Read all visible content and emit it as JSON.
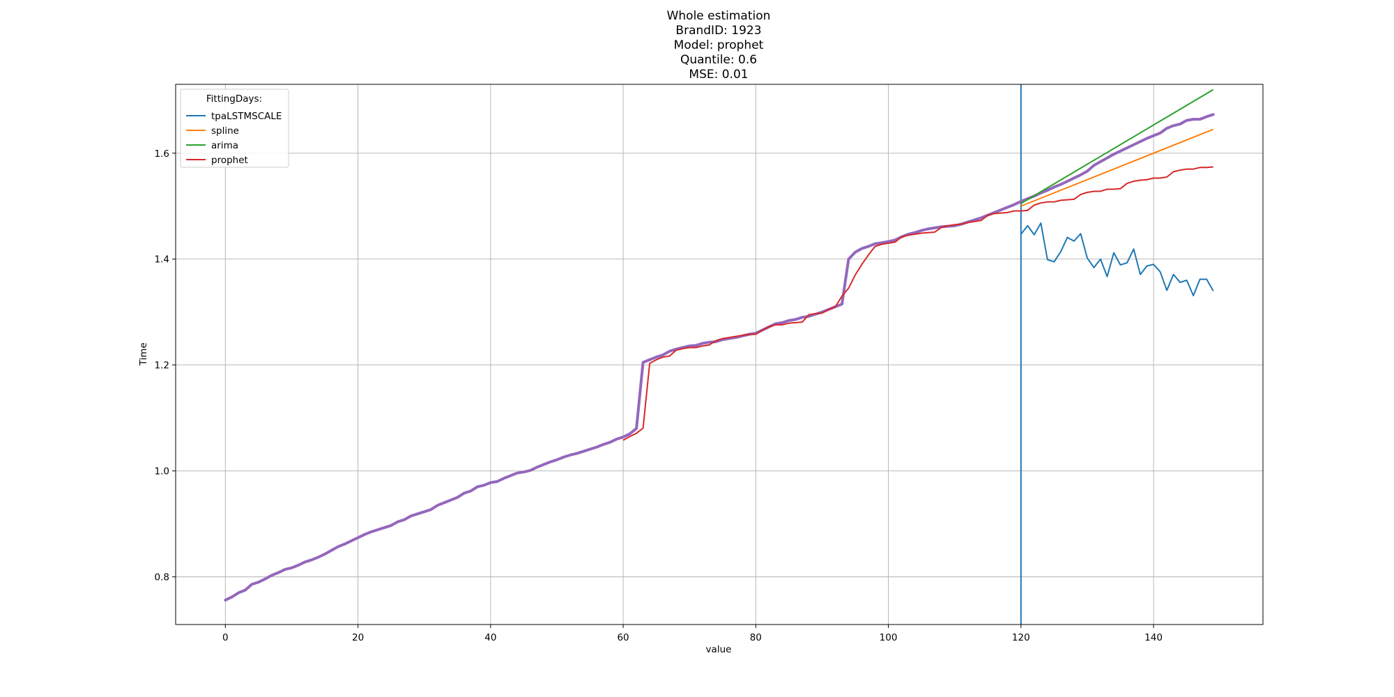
{
  "chart_data": {
    "type": "line",
    "title_lines": [
      "Whole estimation",
      "BrandID: 1923",
      "Model: prophet",
      "Quantile: 0.6",
      "MSE: 0.01"
    ],
    "xlabel": "value",
    "ylabel": "Time",
    "xlim": [
      -7.5,
      156.5
    ],
    "ylim": [
      0.71,
      1.73
    ],
    "xticks": [
      0,
      20,
      40,
      60,
      80,
      100,
      120,
      140
    ],
    "yticks": [
      0.8,
      1.0,
      1.2,
      1.4,
      1.6
    ],
    "ytick_labels": [
      "0.8",
      "1.0",
      "1.2",
      "1.4",
      "1.6"
    ],
    "grid": true,
    "legend": {
      "title": "FittingDays:",
      "placement": "upper-left"
    },
    "vline_x": 120,
    "vline_color": "#1f77b4",
    "actual": {
      "color": "#9467bd",
      "points": [
        [
          0,
          0.756
        ],
        [
          1,
          0.762
        ],
        [
          2,
          0.77
        ],
        [
          3,
          0.775
        ],
        [
          4,
          0.786
        ],
        [
          5,
          0.79
        ],
        [
          6,
          0.796
        ],
        [
          7,
          0.803
        ],
        [
          8,
          0.808
        ],
        [
          9,
          0.814
        ],
        [
          10,
          0.817
        ],
        [
          11,
          0.822
        ],
        [
          12,
          0.828
        ],
        [
          13,
          0.832
        ],
        [
          14,
          0.837
        ],
        [
          15,
          0.843
        ],
        [
          16,
          0.85
        ],
        [
          17,
          0.857
        ],
        [
          18,
          0.862
        ],
        [
          19,
          0.868
        ],
        [
          20,
          0.874
        ],
        [
          21,
          0.88
        ],
        [
          22,
          0.885
        ],
        [
          23,
          0.889
        ],
        [
          24,
          0.893
        ],
        [
          25,
          0.897
        ],
        [
          26,
          0.904
        ],
        [
          27,
          0.908
        ],
        [
          28,
          0.915
        ],
        [
          29,
          0.919
        ],
        [
          30,
          0.923
        ],
        [
          31,
          0.927
        ],
        [
          32,
          0.935
        ],
        [
          33,
          0.94
        ],
        [
          34,
          0.945
        ],
        [
          35,
          0.95
        ],
        [
          36,
          0.958
        ],
        [
          37,
          0.962
        ],
        [
          38,
          0.97
        ],
        [
          39,
          0.973
        ],
        [
          40,
          0.978
        ],
        [
          41,
          0.98
        ],
        [
          42,
          0.986
        ],
        [
          43,
          0.991
        ],
        [
          44,
          0.996
        ],
        [
          45,
          0.998
        ],
        [
          46,
          1.001
        ],
        [
          47,
          1.007
        ],
        [
          48,
          1.012
        ],
        [
          49,
          1.017
        ],
        [
          50,
          1.021
        ],
        [
          51,
          1.026
        ],
        [
          52,
          1.03
        ],
        [
          53,
          1.033
        ],
        [
          54,
          1.037
        ],
        [
          55,
          1.041
        ],
        [
          56,
          1.045
        ],
        [
          57,
          1.05
        ],
        [
          58,
          1.054
        ],
        [
          59,
          1.06
        ],
        [
          60,
          1.064
        ],
        [
          61,
          1.07
        ],
        [
          62,
          1.08
        ],
        [
          63,
          1.205
        ],
        [
          64,
          1.21
        ],
        [
          65,
          1.215
        ],
        [
          66,
          1.219
        ],
        [
          67,
          1.226
        ],
        [
          68,
          1.23
        ],
        [
          69,
          1.233
        ],
        [
          70,
          1.236
        ],
        [
          71,
          1.237
        ],
        [
          72,
          1.241
        ],
        [
          73,
          1.243
        ],
        [
          74,
          1.244
        ],
        [
          75,
          1.248
        ],
        [
          76,
          1.25
        ],
        [
          77,
          1.252
        ],
        [
          78,
          1.255
        ],
        [
          79,
          1.258
        ],
        [
          80,
          1.26
        ],
        [
          81,
          1.266
        ],
        [
          82,
          1.272
        ],
        [
          83,
          1.278
        ],
        [
          84,
          1.28
        ],
        [
          85,
          1.284
        ],
        [
          86,
          1.286
        ],
        [
          87,
          1.29
        ],
        [
          88,
          1.292
        ],
        [
          89,
          1.296
        ],
        [
          90,
          1.3
        ],
        [
          91,
          1.305
        ],
        [
          92,
          1.31
        ],
        [
          93,
          1.315
        ],
        [
          94,
          1.4
        ],
        [
          95,
          1.413
        ],
        [
          96,
          1.42
        ],
        [
          97,
          1.424
        ],
        [
          98,
          1.429
        ],
        [
          99,
          1.431
        ],
        [
          100,
          1.433
        ],
        [
          101,
          1.436
        ],
        [
          102,
          1.442
        ],
        [
          103,
          1.447
        ],
        [
          104,
          1.45
        ],
        [
          105,
          1.454
        ],
        [
          106,
          1.457
        ],
        [
          107,
          1.459
        ],
        [
          108,
          1.461
        ],
        [
          109,
          1.462
        ],
        [
          110,
          1.463
        ],
        [
          111,
          1.466
        ],
        [
          112,
          1.47
        ],
        [
          113,
          1.474
        ],
        [
          114,
          1.478
        ],
        [
          115,
          1.483
        ],
        [
          116,
          1.488
        ],
        [
          117,
          1.493
        ],
        [
          118,
          1.498
        ],
        [
          119,
          1.503
        ],
        [
          120,
          1.509
        ],
        [
          121,
          1.514
        ],
        [
          122,
          1.519
        ],
        [
          123,
          1.525
        ],
        [
          124,
          1.53
        ],
        [
          125,
          1.536
        ],
        [
          126,
          1.541
        ],
        [
          127,
          1.547
        ],
        [
          128,
          1.553
        ],
        [
          129,
          1.559
        ],
        [
          130,
          1.566
        ],
        [
          131,
          1.577
        ],
        [
          132,
          1.584
        ],
        [
          133,
          1.591
        ],
        [
          134,
          1.598
        ],
        [
          135,
          1.604
        ],
        [
          136,
          1.61
        ],
        [
          137,
          1.616
        ],
        [
          138,
          1.622
        ],
        [
          139,
          1.628
        ],
        [
          140,
          1.633
        ],
        [
          141,
          1.638
        ],
        [
          142,
          1.647
        ],
        [
          143,
          1.652
        ],
        [
          144,
          1.655
        ],
        [
          145,
          1.662
        ],
        [
          146,
          1.664
        ],
        [
          147,
          1.664
        ],
        [
          148,
          1.669
        ],
        [
          149,
          1.673
        ]
      ]
    },
    "series": [
      {
        "name": "tpaLSTMSCALE",
        "color": "#1f77b4",
        "points": [
          [
            120,
            1.447
          ],
          [
            121,
            1.463
          ],
          [
            122,
            1.446
          ],
          [
            123,
            1.468
          ],
          [
            124,
            1.399
          ],
          [
            125,
            1.395
          ],
          [
            126,
            1.414
          ],
          [
            127,
            1.441
          ],
          [
            128,
            1.434
          ],
          [
            129,
            1.448
          ],
          [
            130,
            1.402
          ],
          [
            131,
            1.384
          ],
          [
            132,
            1.4
          ],
          [
            133,
            1.367
          ],
          [
            134,
            1.412
          ],
          [
            135,
            1.389
          ],
          [
            136,
            1.393
          ],
          [
            137,
            1.419
          ],
          [
            138,
            1.371
          ],
          [
            139,
            1.387
          ],
          [
            140,
            1.39
          ],
          [
            141,
            1.376
          ],
          [
            142,
            1.341
          ],
          [
            143,
            1.371
          ],
          [
            144,
            1.356
          ],
          [
            145,
            1.36
          ],
          [
            146,
            1.331
          ],
          [
            147,
            1.362
          ],
          [
            148,
            1.362
          ],
          [
            149,
            1.34
          ]
        ]
      },
      {
        "name": "spline",
        "color": "#ff7f0e",
        "points": [
          [
            120,
            1.5
          ],
          [
            149,
            1.645
          ]
        ]
      },
      {
        "name": "arima",
        "color": "#2ca02c",
        "points": [
          [
            120,
            1.505
          ],
          [
            149,
            1.72
          ]
        ]
      },
      {
        "name": "prophet",
        "color": "#d62728",
        "points": [
          [
            60,
            1.058
          ],
          [
            61,
            1.065
          ],
          [
            62,
            1.071
          ],
          [
            63,
            1.081
          ],
          [
            64,
            1.203
          ],
          [
            65,
            1.21
          ],
          [
            66,
            1.215
          ],
          [
            67,
            1.217
          ],
          [
            68,
            1.228
          ],
          [
            69,
            1.231
          ],
          [
            70,
            1.233
          ],
          [
            71,
            1.233
          ],
          [
            72,
            1.236
          ],
          [
            73,
            1.238
          ],
          [
            74,
            1.246
          ],
          [
            75,
            1.25
          ],
          [
            76,
            1.252
          ],
          [
            77,
            1.254
          ],
          [
            78,
            1.256
          ],
          [
            79,
            1.258
          ],
          [
            80,
            1.258
          ],
          [
            81,
            1.266
          ],
          [
            82,
            1.272
          ],
          [
            83,
            1.276
          ],
          [
            84,
            1.276
          ],
          [
            85,
            1.279
          ],
          [
            86,
            1.28
          ],
          [
            87,
            1.281
          ],
          [
            88,
            1.295
          ],
          [
            89,
            1.297
          ],
          [
            90,
            1.298
          ],
          [
            91,
            1.305
          ],
          [
            92,
            1.31
          ],
          [
            93,
            1.33
          ],
          [
            94,
            1.345
          ],
          [
            95,
            1.37
          ],
          [
            96,
            1.39
          ],
          [
            97,
            1.408
          ],
          [
            98,
            1.424
          ],
          [
            99,
            1.428
          ],
          [
            100,
            1.43
          ],
          [
            101,
            1.432
          ],
          [
            102,
            1.442
          ],
          [
            103,
            1.445
          ],
          [
            104,
            1.447
          ],
          [
            105,
            1.449
          ],
          [
            106,
            1.45
          ],
          [
            107,
            1.451
          ],
          [
            108,
            1.46
          ],
          [
            109,
            1.463
          ],
          [
            110,
            1.465
          ],
          [
            111,
            1.466
          ],
          [
            112,
            1.469
          ],
          [
            113,
            1.471
          ],
          [
            114,
            1.473
          ],
          [
            115,
            1.483
          ],
          [
            116,
            1.486
          ],
          [
            117,
            1.487
          ],
          [
            118,
            1.488
          ],
          [
            119,
            1.491
          ],
          [
            120,
            1.491
          ],
          [
            121,
            1.492
          ],
          [
            122,
            1.502
          ],
          [
            123,
            1.506
          ],
          [
            124,
            1.508
          ],
          [
            125,
            1.508
          ],
          [
            126,
            1.511
          ],
          [
            127,
            1.512
          ],
          [
            128,
            1.513
          ],
          [
            129,
            1.522
          ],
          [
            130,
            1.526
          ],
          [
            131,
            1.528
          ],
          [
            132,
            1.528
          ],
          [
            133,
            1.532
          ],
          [
            134,
            1.532
          ],
          [
            135,
            1.533
          ],
          [
            136,
            1.543
          ],
          [
            137,
            1.547
          ],
          [
            138,
            1.549
          ],
          [
            139,
            1.55
          ],
          [
            140,
            1.553
          ],
          [
            141,
            1.553
          ],
          [
            142,
            1.555
          ],
          [
            143,
            1.565
          ],
          [
            144,
            1.568
          ],
          [
            145,
            1.57
          ],
          [
            146,
            1.57
          ],
          [
            147,
            1.573
          ],
          [
            148,
            1.573
          ],
          [
            149,
            1.574
          ]
        ]
      }
    ]
  }
}
